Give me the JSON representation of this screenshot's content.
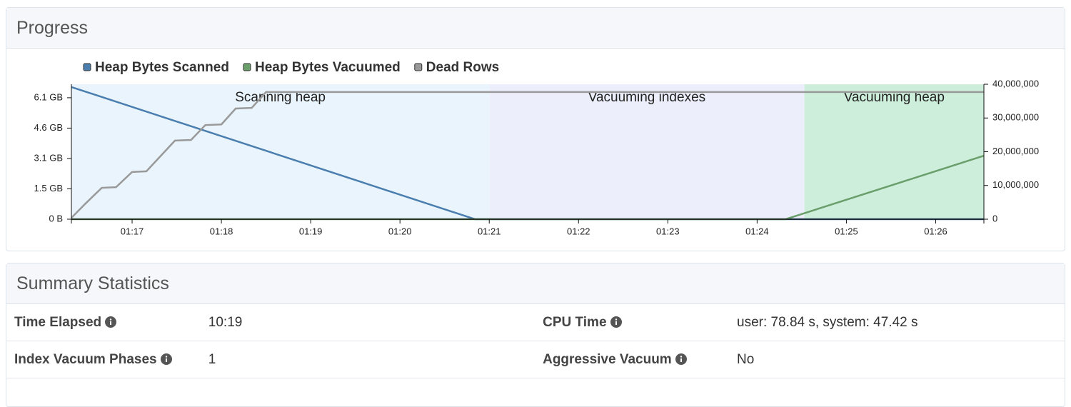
{
  "progress_panel": {
    "title": "Progress"
  },
  "chart_data": {
    "type": "line",
    "legend": "top-left",
    "xlim": [
      76.32,
      86.54
    ],
    "xticks": [
      {
        "value": 77,
        "label": "01:17"
      },
      {
        "value": 78,
        "label": "01:18"
      },
      {
        "value": 79,
        "label": "01:19"
      },
      {
        "value": 80,
        "label": "01:20"
      },
      {
        "value": 81,
        "label": "01:21"
      },
      {
        "value": 82,
        "label": "01:22"
      },
      {
        "value": 83,
        "label": "01:23"
      },
      {
        "value": 84,
        "label": "01:24"
      },
      {
        "value": 85,
        "label": "01:25"
      },
      {
        "value": 86,
        "label": "01:26"
      }
    ],
    "ylim": [
      0,
      6.8
    ],
    "yticks": [
      {
        "value": 0,
        "label": "0 B"
      },
      {
        "value": 1.53,
        "label": "1.5 GB"
      },
      {
        "value": 3.06,
        "label": "3.1 GB"
      },
      {
        "value": 4.59,
        "label": "4.6 GB"
      },
      {
        "value": 6.12,
        "label": "6.1 GB"
      }
    ],
    "y2lim": [
      0,
      40000000
    ],
    "y2ticks": [
      0,
      {
        "value": 10000000,
        "label": "10,000,000"
      },
      {
        "value": 20000000,
        "label": "20,000,000"
      },
      {
        "value": 30000000,
        "label": "30,000,000"
      },
      {
        "value": 40000000,
        "label": "40,000,000"
      }
    ],
    "phases": [
      {
        "label": "Scanning heap",
        "start": 76.32,
        "end": 81.0,
        "color": "#eaf4fc",
        "text_color": "#5a8cb6"
      },
      {
        "label": "Vacuuming indexes",
        "start": 81.0,
        "end": 84.53,
        "color": "#eceffb",
        "text_color": "#8a8a8a"
      },
      {
        "label": "Vacuuming heap",
        "start": 84.53,
        "end": 86.54,
        "color": "#cdeedb",
        "text_color": "#6f9f73"
      }
    ],
    "series": [
      {
        "name": "Heap Bytes Scanned",
        "color": "#4a7eae",
        "x": [
          76.32,
          80.84,
          86.54
        ],
        "values": [
          6.66,
          0,
          0
        ]
      },
      {
        "name": "Heap Bytes Vacuumed",
        "color": "#6a9e6a",
        "x": [
          76.32,
          84.32,
          86.54
        ],
        "values": [
          0,
          0,
          3.2
        ]
      },
      {
        "name": "Dead Rows",
        "color": "#999999",
        "axis": "y2",
        "x": [
          76.32,
          76.48,
          76.66,
          76.82,
          77.0,
          77.16,
          77.48,
          77.66,
          77.82,
          78.0,
          78.16,
          78.34,
          78.5,
          86.54
        ],
        "values": [
          400000,
          4700000,
          9300000,
          9500000,
          14000000,
          14200000,
          23300000,
          23500000,
          27900000,
          28100000,
          32800000,
          33000000,
          37700000,
          37700000
        ]
      }
    ]
  },
  "summary": {
    "title": "Summary Statistics",
    "rows": [
      [
        "Time Elapsed",
        "10:19",
        "CPU Time",
        "user: 78.84 s, system: 47.42 s"
      ],
      [
        "Index Vacuum Phases",
        "1",
        "Aggressive Vacuum",
        "No"
      ]
    ]
  }
}
